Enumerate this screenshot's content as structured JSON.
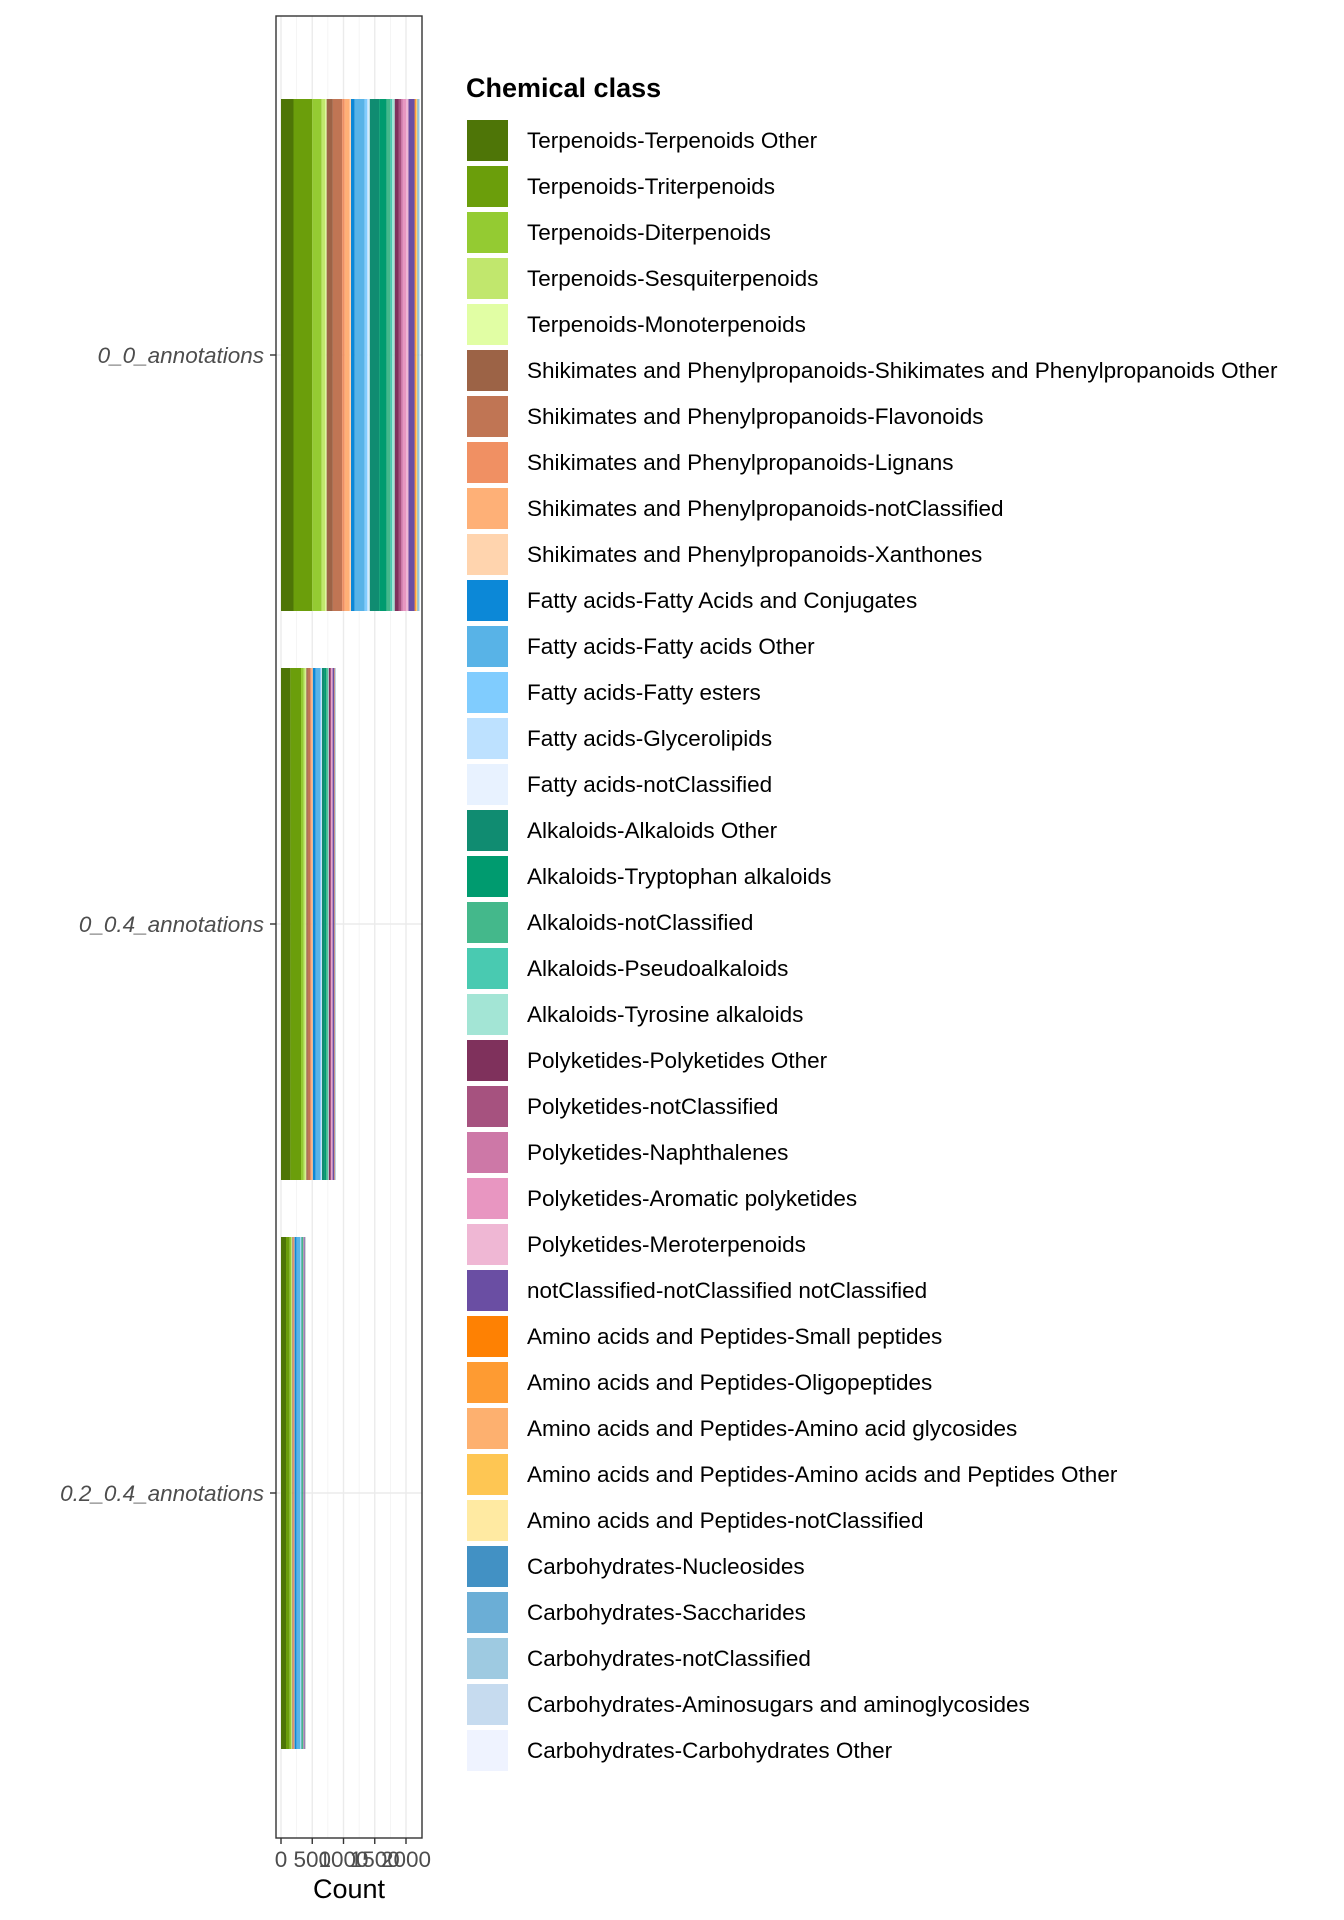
{
  "chart_data": {
    "type": "bar",
    "orientation": "horizontal",
    "stacked": true,
    "xlabel": "Count",
    "ylabel": "",
    "xlim": [
      -50,
      2250
    ],
    "x_ticks": [
      0,
      500,
      1000,
      1500,
      2000
    ],
    "x_tick_labels": [
      "0",
      "500",
      "1000",
      "1500",
      "2000"
    ],
    "grid": true,
    "legend_position": "right",
    "legend_title": "Chemical class",
    "categories": [
      "0_0_annotations",
      "0_0.4_annotations",
      "0.2_0.4_annotations"
    ],
    "series": [
      {
        "name": "Terpenoids-Terpenoids Other",
        "color": "#4e7507",
        "values": [
          200,
          150,
          80
        ]
      },
      {
        "name": "Terpenoids-Triterpenoids",
        "color": "#6b9e0b",
        "values": [
          300,
          170,
          60
        ]
      },
      {
        "name": "Terpenoids-Diterpenoids",
        "color": "#94cb32",
        "values": [
          150,
          45,
          25
        ]
      },
      {
        "name": "Terpenoids-Sesquiterpenoids",
        "color": "#c1e76d",
        "values": [
          60,
          30,
          10
        ]
      },
      {
        "name": "Terpenoids-Monoterpenoids",
        "color": "#e1fea4",
        "values": [
          20,
          10,
          5
        ]
      },
      {
        "name": "Shikimates and Phenylpropanoids-Shikimates and Phenylpropanoids Other",
        "color": "#9c6346",
        "values": [
          100,
          25,
          10
        ]
      },
      {
        "name": "Shikimates and Phenylpropanoids-Flavonoids",
        "color": "#c07554",
        "values": [
          150,
          40,
          10
        ]
      },
      {
        "name": "Shikimates and Phenylpropanoids-Lignans",
        "color": "#f09063",
        "values": [
          40,
          15,
          5
        ]
      },
      {
        "name": "Shikimates and Phenylpropanoids-notClassified",
        "color": "#feb077",
        "values": [
          80,
          20,
          10
        ]
      },
      {
        "name": "Shikimates and Phenylpropanoids-Xanthones",
        "color": "#ffd4ae",
        "values": [
          20,
          5,
          2
        ]
      },
      {
        "name": "Fatty acids-Fatty Acids and Conjugates",
        "color": "#0c88d7",
        "values": [
          60,
          45,
          30
        ]
      },
      {
        "name": "Fatty acids-Fatty acids Other",
        "color": "#58b3e7",
        "values": [
          160,
          70,
          60
        ]
      },
      {
        "name": "Fatty acids-Fatty esters",
        "color": "#80ccfe",
        "values": [
          40,
          15,
          10
        ]
      },
      {
        "name": "Fatty acids-Glycerolipids",
        "color": "#bde1ff",
        "values": [
          20,
          10,
          5
        ]
      },
      {
        "name": "Fatty acids-notClassified",
        "color": "#e8f2ff",
        "values": [
          20,
          5,
          5
        ]
      },
      {
        "name": "Alkaloids-Alkaloids Other",
        "color": "#108c71",
        "values": [
          150,
          40,
          10
        ]
      },
      {
        "name": "Alkaloids-Tryptophan alkaloids",
        "color": "#009b6f",
        "values": [
          120,
          30,
          10
        ]
      },
      {
        "name": "Alkaloids-notClassified",
        "color": "#44b88b",
        "values": [
          60,
          20,
          5
        ]
      },
      {
        "name": "Alkaloids-Pseudoalkaloids",
        "color": "#49cab1",
        "values": [
          30,
          10,
          3
        ]
      },
      {
        "name": "Alkaloids-Tyrosine alkaloids",
        "color": "#a3e5d5",
        "values": [
          40,
          10,
          3
        ]
      },
      {
        "name": "Polyketides-Polyketides Other",
        "color": "#7f315c",
        "values": [
          60,
          25,
          5
        ]
      },
      {
        "name": "Polyketides-notClassified",
        "color": "#a6527f",
        "values": [
          40,
          10,
          3
        ]
      },
      {
        "name": "Polyketides-Naphthalenes",
        "color": "#cd78a7",
        "values": [
          30,
          5,
          2
        ]
      },
      {
        "name": "Polyketides-Aromatic polyketides",
        "color": "#e896c1",
        "values": [
          50,
          10,
          3
        ]
      },
      {
        "name": "Polyketides-Meroterpenoids",
        "color": "#efb7d4",
        "values": [
          40,
          10,
          3
        ]
      },
      {
        "name": "notClassified-notClassified notClassified",
        "color": "#6a4ea3",
        "values": [
          100,
          30,
          10
        ]
      },
      {
        "name": "Amino acids and Peptides-Small peptides",
        "color": "#fe8103",
        "values": [
          10,
          3,
          1
        ]
      },
      {
        "name": "Amino acids and Peptides-Oligopeptides",
        "color": "#fe9b32",
        "values": [
          10,
          3,
          1
        ]
      },
      {
        "name": "Amino acids and Peptides-Amino acid glycosides",
        "color": "#fdb06f",
        "values": [
          5,
          2,
          1
        ]
      },
      {
        "name": "Amino acids and Peptides-Amino acids and Peptides Other",
        "color": "#fec653",
        "values": [
          10,
          2,
          1
        ]
      },
      {
        "name": "Amino acids and Peptides-notClassified",
        "color": "#ffeaa2",
        "values": [
          10,
          2,
          1
        ]
      },
      {
        "name": "Carbohydrates-Nucleosides",
        "color": "#4291c4",
        "values": [
          10,
          3,
          2
        ]
      },
      {
        "name": "Carbohydrates-Saccharides",
        "color": "#6baed6",
        "values": [
          10,
          3,
          2
        ]
      },
      {
        "name": "Carbohydrates-notClassified",
        "color": "#9ecae1",
        "values": [
          10,
          3,
          2
        ]
      },
      {
        "name": "Carbohydrates-Aminosugars and aminoglycosides",
        "color": "#c6dbef",
        "values": [
          5,
          2,
          1
        ]
      },
      {
        "name": "Carbohydrates-Carbohydrates Other",
        "color": "#eff3ff",
        "values": [
          5,
          2,
          1
        ]
      }
    ]
  }
}
